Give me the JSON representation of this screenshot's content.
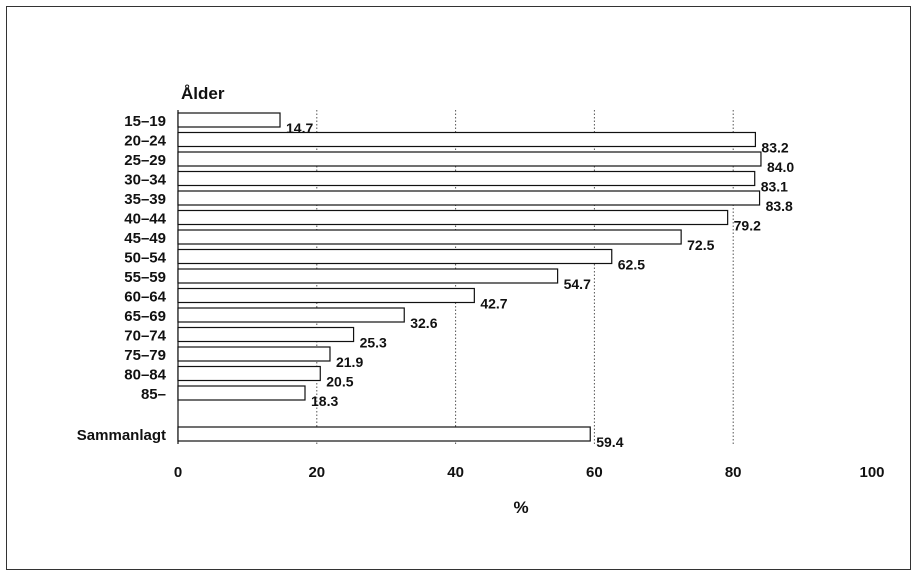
{
  "chart_data": {
    "type": "bar",
    "orientation": "horizontal",
    "title": "",
    "ylabel": "Ålder",
    "xlabel": "%",
    "xlim": [
      0,
      100
    ],
    "xticks": [
      "0",
      "20",
      "40",
      "60",
      "80",
      "100"
    ],
    "grid": "vertical dotted lines at 20, 40, 60, 80",
    "categories": [
      "15–19",
      "20–24",
      "25–29",
      "30–34",
      "35–39",
      "40–44",
      "45–49",
      "50–54",
      "55–59",
      "60–64",
      "65–69",
      "70–74",
      "75–79",
      "80–84",
      "85–",
      "Sammanlagt"
    ],
    "values": [
      14.7,
      83.2,
      84.0,
      83.1,
      83.8,
      79.2,
      72.5,
      62.5,
      54.7,
      42.7,
      32.6,
      25.3,
      21.9,
      20.5,
      18.3,
      59.4
    ],
    "value_labels": [
      "14.7",
      "83.2",
      "84.0",
      "83.1",
      "83.8",
      "79.2",
      "72.5",
      "62.5",
      "54.7",
      "42.7",
      "32.6",
      "25.3",
      "21.9",
      "20.5",
      "18.3",
      "59.4"
    ],
    "colors": {
      "bar_fill": "#ffffff",
      "bar_stroke": "#111111",
      "grid": "#555555"
    }
  }
}
